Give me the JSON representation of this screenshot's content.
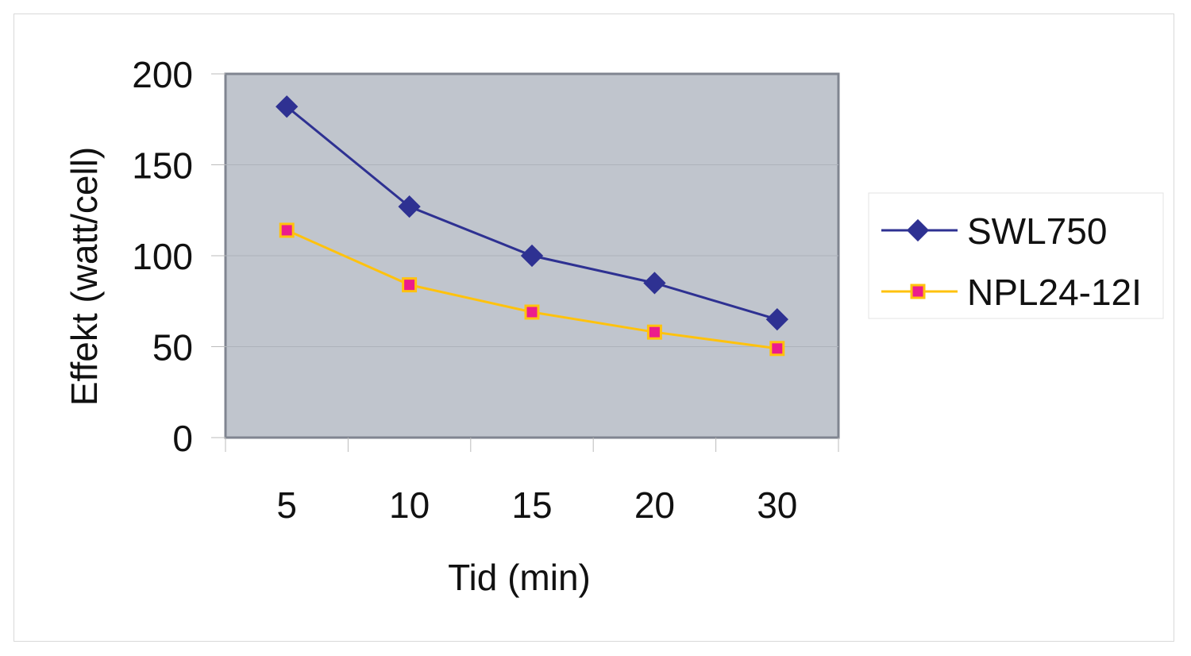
{
  "chart_data": {
    "type": "line",
    "title": "",
    "xlabel": "Tid (min)",
    "ylabel": "Effekt (watt/cell)",
    "categories": [
      "5",
      "10",
      "15",
      "20",
      "30"
    ],
    "ylim": [
      0,
      200
    ],
    "yticks": [
      "0",
      "50",
      "100",
      "150",
      "200"
    ],
    "grid": true,
    "legend_position": "right",
    "plot_background": "#c0c5cd",
    "series": [
      {
        "name": "SWL750",
        "values": [
          182,
          127,
          100,
          85,
          65
        ],
        "color": "#2e3192",
        "marker": "diamond"
      },
      {
        "name": "NPL24-12I",
        "values": [
          114,
          84,
          69,
          58,
          49
        ],
        "color": "#ffc20e",
        "marker": "square",
        "marker_fill": "#ec1c8c"
      }
    ]
  }
}
